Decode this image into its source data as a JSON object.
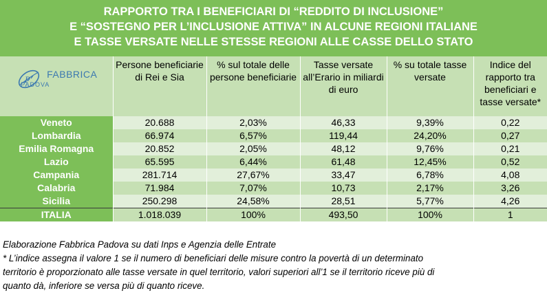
{
  "title_lines": [
    "RAPPORTO TRA I BENEFICIARI DI “REDDITO DI INCLUSIONE”",
    "E “SOSTEGNO PER L’INCLUSIONE ATTIVA” IN ALCUNE REGIONI ITALIANE",
    "E TASSE VERSATE NELLE STESSE REGIONI ALLE CASSE DELLO STATO"
  ],
  "logo": {
    "word": "FABBRICA",
    "sub": "PADOVA"
  },
  "headers": [
    "Persone beneficiarie di Rei e Sia",
    "% sul totale delle persone beneficiarie",
    "Tasse versate all’Erario in miliardi di euro",
    "% su totale tasse versate",
    "Indice del rapporto tra beneficiari e tasse versate*"
  ],
  "rows": [
    {
      "region": "Veneto",
      "beneficiari": "20.688",
      "pct_beneficiari": "2,03%",
      "tasse": "46,33",
      "pct_tasse": "9,39%",
      "indice": "0,22"
    },
    {
      "region": "Lombardia",
      "beneficiari": "66.974",
      "pct_beneficiari": "6,57%",
      "tasse": "119,44",
      "pct_tasse": "24,20%",
      "indice": "0,27"
    },
    {
      "region": "Emilia Romagna",
      "beneficiari": "20.852",
      "pct_beneficiari": "2,05%",
      "tasse": "48,12",
      "pct_tasse": "9,76%",
      "indice": "0,21"
    },
    {
      "region": "Lazio",
      "beneficiari": "65.595",
      "pct_beneficiari": "6,44%",
      "tasse": "61,48",
      "pct_tasse": "12,45%",
      "indice": "0,52"
    },
    {
      "region": "Campania",
      "beneficiari": "281.714",
      "pct_beneficiari": "27,67%",
      "tasse": "33,47",
      "pct_tasse": "6,78%",
      "indice": "4,08"
    },
    {
      "region": "Calabria",
      "beneficiari": "71.984",
      "pct_beneficiari": "7,07%",
      "tasse": "10,73",
      "pct_tasse": "2,17%",
      "indice": "3,26"
    },
    {
      "region": "Sicilia",
      "beneficiari": "250.298",
      "pct_beneficiari": "24,58%",
      "tasse": "28,51",
      "pct_tasse": "5,77%",
      "indice": "4,26"
    },
    {
      "region": "ITALIA",
      "beneficiari": "1.018.039",
      "pct_beneficiari": "100%",
      "tasse": "493,50",
      "pct_tasse": "100%",
      "indice": "1"
    }
  ],
  "source_note": "Elaborazione Fabbrica Padova su dati Inps e Agenzia delle Entrate",
  "footnote_lines": [
    "* L’indice assegna il valore 1 se il numero di beneficiari delle misure contro la povertà di un determinato",
    "territorio è proporzionato alle tasse versate in quel territorio, valori superiori all’1 se il territorio riceve più di",
    "quanto dà, inferiore se versa più di quanto riceve."
  ],
  "colors": {
    "band": "#7dbf58",
    "light": "#e2efda",
    "mid": "#c6e0b4",
    "logo": "#3b78b0"
  }
}
